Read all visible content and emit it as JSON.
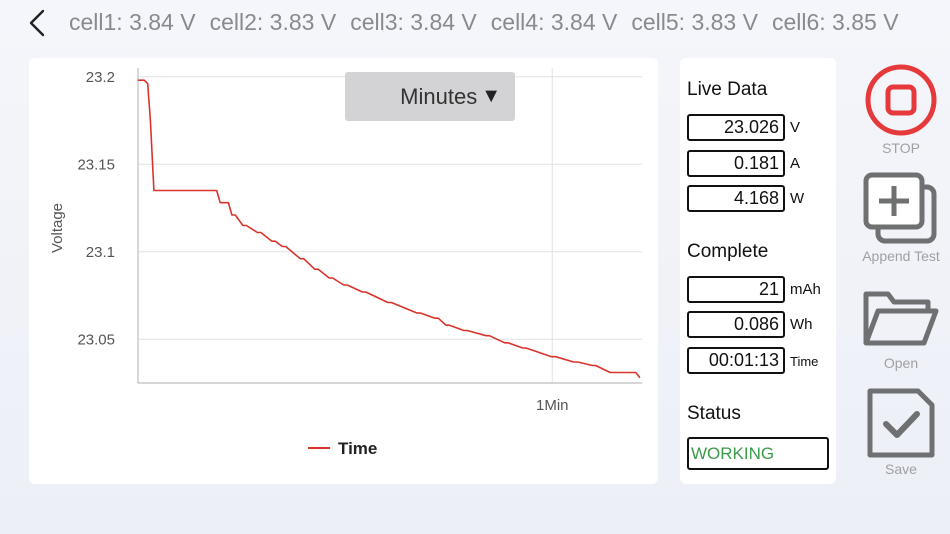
{
  "header": {
    "cells": [
      "cell1: 3.84 V",
      "cell2: 3.83 V",
      "cell3: 3.84 V",
      "cell4: 3.84 V",
      "cell5: 3.83 V",
      "cell6: 3.85 V"
    ]
  },
  "chart": {
    "time_unit_button": "Minutes",
    "caret": "▼"
  },
  "chart_data": {
    "type": "line",
    "xlabel": "",
    "ylabel": "Voltage",
    "ylim": [
      23.025,
      23.205
    ],
    "yticks": [
      23.05,
      23.1,
      23.15,
      23.2
    ],
    "ytick_labels": [
      "23.05",
      "23.1",
      "23.15",
      "23.2"
    ],
    "xlim_sec": [
      0,
      73
    ],
    "xticks_sec": [
      60
    ],
    "xtick_labels": [
      "1Min"
    ],
    "grid": true,
    "legend": "bottom-center",
    "series": [
      {
        "name": "Time",
        "color": "#d9342b",
        "x_sec": [
          0,
          0.9,
          1.4,
          1.8,
          2.3,
          11.4,
          11.9,
          13.1,
          13.6,
          14.1,
          15.2,
          15.7,
          17.3,
          17.8,
          19.4,
          19.9,
          20.9,
          21.4,
          23.5,
          24.0,
          25.6,
          26.1,
          27.7,
          28.2,
          29.8,
          30.3,
          32.5,
          33.0,
          36.2,
          36.7,
          40.4,
          40.9,
          43.0,
          43.5,
          44.6,
          45.1,
          47.2,
          47.7,
          50.4,
          50.9,
          53.1,
          53.6,
          55.7,
          56.2,
          59.9,
          60.5,
          63.1,
          63.7,
          65.8,
          66.3,
          68.4,
          69.0,
          72.1,
          72.7
        ],
        "y": [
          23.198,
          23.198,
          23.196,
          23.175,
          23.135,
          23.135,
          23.128,
          23.128,
          23.121,
          23.121,
          23.115,
          23.115,
          23.111,
          23.111,
          23.106,
          23.106,
          23.103,
          23.103,
          23.096,
          23.096,
          23.09,
          23.09,
          23.085,
          23.085,
          23.081,
          23.081,
          23.077,
          23.077,
          23.071,
          23.071,
          23.065,
          23.065,
          23.062,
          23.062,
          23.058,
          23.058,
          23.055,
          23.055,
          23.052,
          23.052,
          23.048,
          23.048,
          23.045,
          23.045,
          23.04,
          23.04,
          23.037,
          23.037,
          23.035,
          23.035,
          23.031,
          23.031,
          23.031,
          23.028
        ]
      }
    ]
  },
  "live": {
    "title": "Live Data",
    "voltage": "23.026",
    "voltage_unit": "V",
    "current": "0.181",
    "current_unit": "A",
    "power": "4.168",
    "power_unit": "W"
  },
  "complete": {
    "title": "Complete",
    "capacity": "21",
    "capacity_unit": "mAh",
    "energy": "0.086",
    "energy_unit": "Wh",
    "time": "00:01:13",
    "time_unit": "Time"
  },
  "status": {
    "title": "Status",
    "value": "WORKING",
    "value_color": "#3b9a4a"
  },
  "actions": {
    "stop": "STOP",
    "append": "Append Test",
    "open": "Open",
    "save": "Save",
    "stop_color": "#e5393b"
  },
  "icons": [
    "back-chevron-icon",
    "stop-icon",
    "append-test-icon",
    "open-folder-icon",
    "save-check-icon"
  ]
}
